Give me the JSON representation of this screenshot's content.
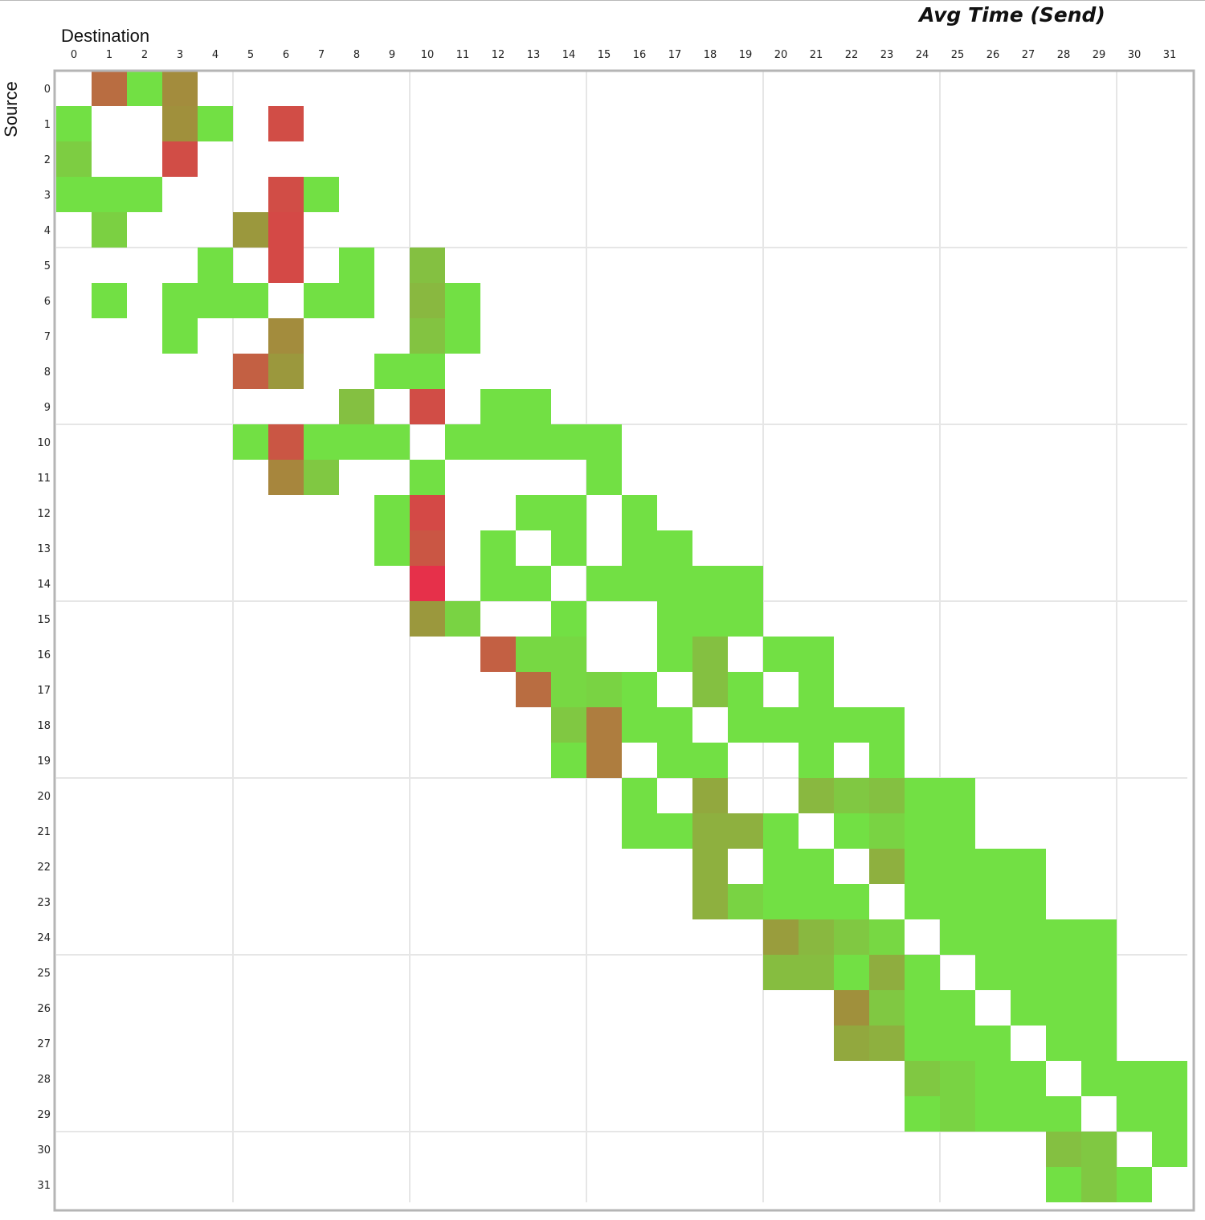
{
  "chart_data": {
    "type": "heatmap",
    "title": "Avg Time (Send)",
    "xlabel": "Destination",
    "ylabel": "Source",
    "x_categories": [
      "0",
      "1",
      "2",
      "3",
      "4",
      "5",
      "6",
      "7",
      "8",
      "9",
      "10",
      "11",
      "12",
      "13",
      "14",
      "15",
      "16",
      "17",
      "18",
      "19",
      "20",
      "21",
      "22",
      "23",
      "24",
      "25",
      "26",
      "27",
      "28",
      "29",
      "30",
      "31"
    ],
    "y_categories": [
      "0",
      "1",
      "2",
      "3",
      "4",
      "5",
      "6",
      "7",
      "8",
      "9",
      "10",
      "11",
      "12",
      "13",
      "14",
      "15",
      "16",
      "17",
      "18",
      "19",
      "20",
      "21",
      "22",
      "23",
      "24",
      "25",
      "26",
      "27",
      "28",
      "29",
      "30",
      "31"
    ],
    "value_range": [
      0,
      1
    ],
    "color_scale": {
      "low": "#72e044",
      "mid": "#a0903c",
      "high": "#e6304a"
    },
    "group_size": 5,
    "grid_color": "#e6e6e6",
    "cells": [
      [
        0,
        1,
        0.68
      ],
      [
        0,
        2,
        0.0
      ],
      [
        0,
        3,
        0.52
      ],
      [
        1,
        0,
        0.0
      ],
      [
        1,
        3,
        0.5
      ],
      [
        1,
        4,
        0.0
      ],
      [
        1,
        6,
        0.85
      ],
      [
        2,
        0,
        0.12
      ],
      [
        2,
        3,
        0.85
      ],
      [
        3,
        0,
        0.0
      ],
      [
        3,
        1,
        0.0
      ],
      [
        3,
        2,
        0.0
      ],
      [
        3,
        6,
        0.85
      ],
      [
        3,
        7,
        0.0
      ],
      [
        4,
        1,
        0.1
      ],
      [
        4,
        5,
        0.45
      ],
      [
        4,
        6,
        0.87
      ],
      [
        5,
        4,
        0.0
      ],
      [
        5,
        6,
        0.87
      ],
      [
        5,
        8,
        0.0
      ],
      [
        5,
        10,
        0.2
      ],
      [
        6,
        1,
        0.0
      ],
      [
        6,
        3,
        0.0
      ],
      [
        6,
        4,
        0.0
      ],
      [
        6,
        5,
        0.0
      ],
      [
        6,
        7,
        0.0
      ],
      [
        6,
        8,
        0.0
      ],
      [
        6,
        10,
        0.25
      ],
      [
        6,
        11,
        0.0
      ],
      [
        7,
        3,
        0.0
      ],
      [
        7,
        6,
        0.52
      ],
      [
        7,
        10,
        0.18
      ],
      [
        7,
        11,
        0.0
      ],
      [
        8,
        5,
        0.75
      ],
      [
        8,
        6,
        0.45
      ],
      [
        8,
        9,
        0.0
      ],
      [
        8,
        10,
        0.0
      ],
      [
        9,
        8,
        0.2
      ],
      [
        9,
        10,
        0.85
      ],
      [
        9,
        12,
        0.0
      ],
      [
        9,
        13,
        0.0
      ],
      [
        10,
        5,
        0.0
      ],
      [
        10,
        6,
        0.8
      ],
      [
        10,
        7,
        0.0
      ],
      [
        10,
        8,
        0.0
      ],
      [
        10,
        9,
        0.0
      ],
      [
        10,
        11,
        0.0
      ],
      [
        10,
        12,
        0.0
      ],
      [
        10,
        13,
        0.0
      ],
      [
        10,
        14,
        0.0
      ],
      [
        10,
        15,
        0.0
      ],
      [
        11,
        6,
        0.55
      ],
      [
        11,
        7,
        0.15
      ],
      [
        11,
        10,
        0.0
      ],
      [
        11,
        15,
        0.0
      ],
      [
        12,
        9,
        0.0
      ],
      [
        12,
        10,
        0.87
      ],
      [
        12,
        13,
        0.0
      ],
      [
        12,
        14,
        0.0
      ],
      [
        12,
        16,
        0.0
      ],
      [
        13,
        9,
        0.0
      ],
      [
        13,
        10,
        0.8
      ],
      [
        13,
        12,
        0.0
      ],
      [
        13,
        14,
        0.0
      ],
      [
        13,
        16,
        0.0
      ],
      [
        13,
        17,
        0.0
      ],
      [
        14,
        10,
        1.0
      ],
      [
        14,
        12,
        0.0
      ],
      [
        14,
        13,
        0.0
      ],
      [
        14,
        15,
        0.0
      ],
      [
        14,
        16,
        0.0
      ],
      [
        14,
        17,
        0.0
      ],
      [
        14,
        18,
        0.0
      ],
      [
        14,
        19,
        0.0
      ],
      [
        15,
        10,
        0.45
      ],
      [
        15,
        11,
        0.08
      ],
      [
        15,
        14,
        0.0
      ],
      [
        15,
        17,
        0.0
      ],
      [
        15,
        18,
        0.0
      ],
      [
        15,
        19,
        0.0
      ],
      [
        16,
        12,
        0.75
      ],
      [
        16,
        13,
        0.05
      ],
      [
        16,
        14,
        0.05
      ],
      [
        16,
        17,
        0.0
      ],
      [
        16,
        18,
        0.2
      ],
      [
        16,
        20,
        0.0
      ],
      [
        16,
        21,
        0.0
      ],
      [
        17,
        13,
        0.68
      ],
      [
        17,
        14,
        0.05
      ],
      [
        17,
        15,
        0.08
      ],
      [
        17,
        16,
        0.0
      ],
      [
        17,
        18,
        0.2
      ],
      [
        17,
        19,
        0.0
      ],
      [
        17,
        21,
        0.0
      ],
      [
        18,
        14,
        0.15
      ],
      [
        18,
        15,
        0.6
      ],
      [
        18,
        16,
        0.0
      ],
      [
        18,
        17,
        0.0
      ],
      [
        18,
        19,
        0.0
      ],
      [
        18,
        20,
        0.0
      ],
      [
        18,
        21,
        0.0
      ],
      [
        18,
        22,
        0.0
      ],
      [
        18,
        23,
        0.0
      ],
      [
        19,
        14,
        0.0
      ],
      [
        19,
        15,
        0.6
      ],
      [
        19,
        17,
        0.0
      ],
      [
        19,
        18,
        0.0
      ],
      [
        19,
        21,
        0.0
      ],
      [
        19,
        23,
        0.0
      ],
      [
        20,
        16,
        0.0
      ],
      [
        20,
        18,
        0.35
      ],
      [
        20,
        21,
        0.25
      ],
      [
        20,
        22,
        0.15
      ],
      [
        20,
        23,
        0.2
      ],
      [
        20,
        24,
        0.0
      ],
      [
        20,
        25,
        0.0
      ],
      [
        21,
        16,
        0.0
      ],
      [
        21,
        17,
        0.0
      ],
      [
        21,
        18,
        0.3
      ],
      [
        21,
        19,
        0.3
      ],
      [
        21,
        20,
        0.0
      ],
      [
        21,
        22,
        0.0
      ],
      [
        21,
        23,
        0.08
      ],
      [
        21,
        24,
        0.0
      ],
      [
        21,
        25,
        0.0
      ],
      [
        22,
        18,
        0.3
      ],
      [
        22,
        20,
        0.0
      ],
      [
        22,
        21,
        0.0
      ],
      [
        22,
        23,
        0.3
      ],
      [
        22,
        24,
        0.0
      ],
      [
        22,
        25,
        0.0
      ],
      [
        22,
        26,
        0.0
      ],
      [
        22,
        27,
        0.0
      ],
      [
        23,
        18,
        0.3
      ],
      [
        23,
        19,
        0.08
      ],
      [
        23,
        20,
        0.0
      ],
      [
        23,
        21,
        0.0
      ],
      [
        23,
        22,
        0.0
      ],
      [
        23,
        24,
        0.0
      ],
      [
        23,
        25,
        0.0
      ],
      [
        23,
        26,
        0.0
      ],
      [
        23,
        27,
        0.0
      ],
      [
        24,
        20,
        0.42
      ],
      [
        24,
        21,
        0.25
      ],
      [
        24,
        22,
        0.15
      ],
      [
        24,
        23,
        0.05
      ],
      [
        24,
        25,
        0.0
      ],
      [
        24,
        26,
        0.0
      ],
      [
        24,
        27,
        0.0
      ],
      [
        24,
        28,
        0.0
      ],
      [
        24,
        29,
        0.0
      ],
      [
        25,
        20,
        0.22
      ],
      [
        25,
        21,
        0.22
      ],
      [
        25,
        22,
        0.0
      ],
      [
        25,
        23,
        0.32
      ],
      [
        25,
        24,
        0.0
      ],
      [
        25,
        26,
        0.0
      ],
      [
        25,
        27,
        0.0
      ],
      [
        25,
        28,
        0.0
      ],
      [
        25,
        29,
        0.0
      ],
      [
        26,
        22,
        0.5
      ],
      [
        26,
        23,
        0.15
      ],
      [
        26,
        24,
        0.0
      ],
      [
        26,
        25,
        0.0
      ],
      [
        26,
        27,
        0.0
      ],
      [
        26,
        28,
        0.0
      ],
      [
        26,
        29,
        0.0
      ],
      [
        27,
        22,
        0.35
      ],
      [
        27,
        23,
        0.3
      ],
      [
        27,
        24,
        0.0
      ],
      [
        27,
        25,
        0.0
      ],
      [
        27,
        26,
        0.0
      ],
      [
        27,
        28,
        0.0
      ],
      [
        27,
        29,
        0.0
      ],
      [
        28,
        24,
        0.15
      ],
      [
        28,
        25,
        0.08
      ],
      [
        28,
        26,
        0.0
      ],
      [
        28,
        27,
        0.0
      ],
      [
        28,
        29,
        0.0
      ],
      [
        28,
        30,
        0.0
      ],
      [
        28,
        31,
        0.0
      ],
      [
        29,
        24,
        0.0
      ],
      [
        29,
        25,
        0.08
      ],
      [
        29,
        26,
        0.0
      ],
      [
        29,
        27,
        0.0
      ],
      [
        29,
        28,
        0.0
      ],
      [
        29,
        30,
        0.0
      ],
      [
        29,
        31,
        0.0
      ],
      [
        30,
        28,
        0.2
      ],
      [
        30,
        29,
        0.15
      ],
      [
        30,
        31,
        0.0
      ],
      [
        31,
        28,
        0.0
      ],
      [
        31,
        29,
        0.15
      ],
      [
        31,
        30,
        0.0
      ]
    ]
  }
}
